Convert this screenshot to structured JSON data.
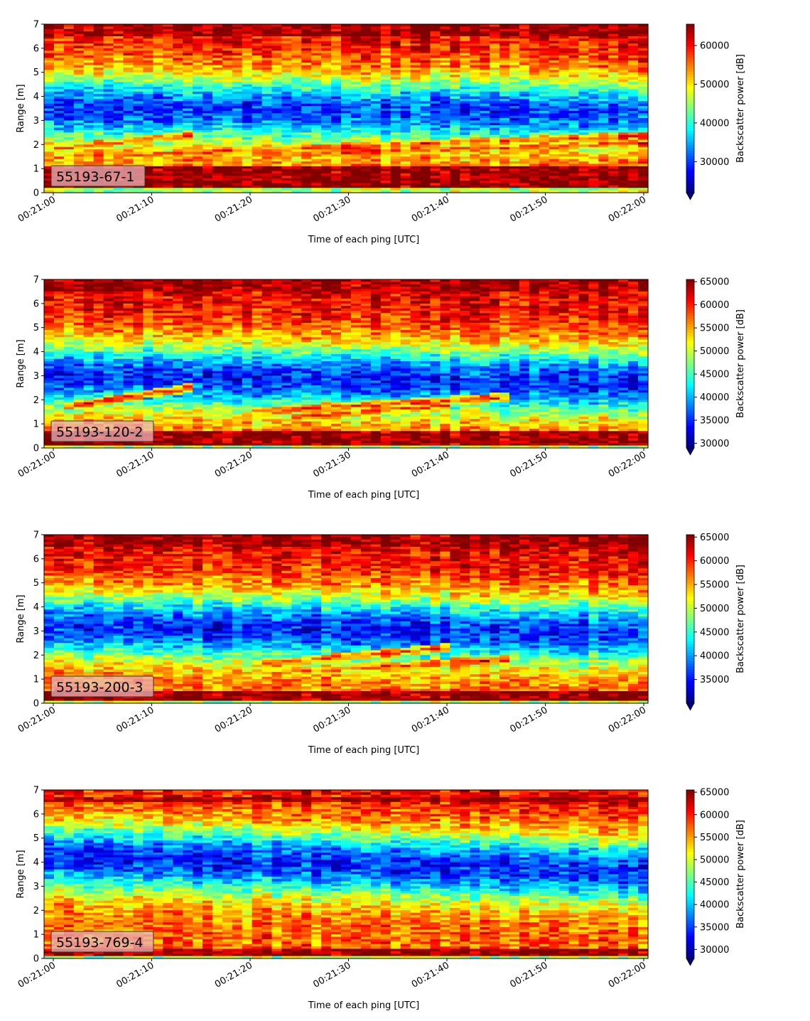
{
  "figure": {
    "colors": {
      "jet_low": "#00007f",
      "jet_high": "#7f0000",
      "label_box_fill": "#e8b4b8",
      "axis": "#000000"
    }
  },
  "chart_data": [
    {
      "type": "heatmap",
      "panel_label": "55193-67-1",
      "xlabel": "Time of each ping [UTC]",
      "ylabel": "Range [m]",
      "colorbar_label": "Backscatter power [dB]",
      "x_ticks": [
        "00:21:00",
        "00:21:10",
        "00:21:20",
        "00:21:30",
        "00:21:40",
        "00:21:50",
        "00:22:00"
      ],
      "y_ticks": [
        0,
        1,
        2,
        3,
        4,
        5,
        6,
        7
      ],
      "ylim": [
        0,
        7
      ],
      "xlim": [
        "00:21:00",
        "00:22:00"
      ],
      "colorbar_ticks": [
        30000,
        40000,
        50000,
        60000
      ],
      "vmin": 22000,
      "vmax": 65500,
      "colorbar_extend": "min",
      "colormap": "jet",
      "features": {
        "surface_band_m": [
          0.2,
          1.1
        ],
        "top_band_m": [
          6.5,
          7.0
        ],
        "dark_layer_center_m": [
          3.5,
          3.3
        ],
        "dark_layer_strength": 0.95,
        "rising_tracks": [
          {
            "from_s": 0,
            "to_s": 14,
            "from_m": 1.8,
            "to_m": 2.4
          },
          {
            "from_s": 0,
            "to_s": 60,
            "from_m": 1.45,
            "to_m": 2.35
          },
          {
            "from_s": 20,
            "to_s": 60,
            "from_m": 1.55,
            "to_m": 2.05
          }
        ]
      }
    },
    {
      "type": "heatmap",
      "panel_label": "55193-120-2",
      "xlabel": "Time of each ping [UTC]",
      "ylabel": "Range [m]",
      "colorbar_label": "Backscatter power [dB]",
      "x_ticks": [
        "00:21:00",
        "00:21:10",
        "00:21:20",
        "00:21:30",
        "00:21:40",
        "00:21:50",
        "00:22:00"
      ],
      "y_ticks": [
        0,
        1,
        2,
        3,
        4,
        5,
        6,
        7
      ],
      "ylim": [
        0,
        7
      ],
      "xlim": [
        "00:21:00",
        "00:22:00"
      ],
      "colorbar_ticks": [
        30000,
        35000,
        40000,
        45000,
        50000,
        55000,
        60000,
        65000
      ],
      "vmin": 29000,
      "vmax": 65500,
      "colorbar_extend": "min",
      "colormap": "jet",
      "features": {
        "surface_band_m": [
          0.15,
          0.7
        ],
        "top_band_m": [
          6.5,
          7.0
        ],
        "dark_layer_center_m": [
          3.0,
          2.7
        ],
        "dark_layer_strength": 1.0,
        "rising_tracks": [
          {
            "from_s": 1,
            "to_s": 14,
            "from_m": 1.7,
            "to_m": 2.5
          },
          {
            "from_s": 20,
            "to_s": 46,
            "from_m": 1.5,
            "to_m": 2.1
          },
          {
            "from_s": 24,
            "to_s": 40,
            "from_m": 1.25,
            "to_m": 1.75
          }
        ]
      }
    },
    {
      "type": "heatmap",
      "panel_label": "55193-200-3",
      "xlabel": "Time of each ping [UTC]",
      "ylabel": "Range [m]",
      "colorbar_label": "Backscatter power [dB]",
      "x_ticks": [
        "00:21:00",
        "00:21:10",
        "00:21:20",
        "00:21:30",
        "00:21:40",
        "00:21:50",
        "00:22:00"
      ],
      "y_ticks": [
        0,
        1,
        2,
        3,
        4,
        5,
        6,
        7
      ],
      "ylim": [
        0,
        7
      ],
      "xlim": [
        "00:21:00",
        "00:22:00"
      ],
      "colorbar_ticks": [
        35000,
        40000,
        45000,
        50000,
        55000,
        60000,
        65000
      ],
      "vmin": 30000,
      "vmax": 65500,
      "colorbar_extend": "min",
      "colormap": "jet",
      "features": {
        "surface_band_m": [
          0.15,
          0.5
        ],
        "top_band_m": [
          6.5,
          7.0
        ],
        "dark_layer_center_m": [
          3.2,
          2.9
        ],
        "dark_layer_strength": 1.0,
        "rising_tracks": [
          {
            "from_s": 21,
            "to_s": 40,
            "from_m": 1.6,
            "to_m": 2.3
          },
          {
            "from_s": 25,
            "to_s": 46,
            "from_m": 1.3,
            "to_m": 1.8
          }
        ]
      }
    },
    {
      "type": "heatmap",
      "panel_label": "55193-769-4",
      "xlabel": "Time of each ping [UTC]",
      "ylabel": "Range [m]",
      "colorbar_label": "Backscatter power [dB]",
      "x_ticks": [
        "00:21:00",
        "00:21:10",
        "00:21:20",
        "00:21:30",
        "00:21:40",
        "00:21:50",
        "00:22:00"
      ],
      "y_ticks": [
        0,
        1,
        2,
        3,
        4,
        5,
        6,
        7
      ],
      "ylim": [
        0,
        7
      ],
      "xlim": [
        "00:21:00",
        "00:22:00"
      ],
      "colorbar_ticks": [
        30000,
        35000,
        40000,
        45000,
        50000,
        55000,
        60000,
        65000
      ],
      "vmin": 28000,
      "vmax": 65500,
      "colorbar_extend": "min",
      "colormap": "jet",
      "features": {
        "surface_band_m": [
          0.15,
          0.35
        ],
        "top_band_m": [
          6.5,
          6.7
        ],
        "dark_layer_center_m": [
          4.2,
          3.6
        ],
        "dark_layer_strength": 1.0,
        "rising_tracks": []
      }
    }
  ]
}
